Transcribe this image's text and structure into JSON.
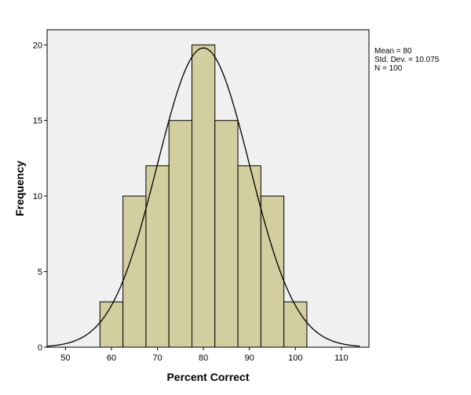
{
  "chart_data": {
    "type": "bar",
    "subtype": "histogram",
    "bins": [
      {
        "x0": 57.5,
        "x1": 62.5,
        "count": 3
      },
      {
        "x0": 62.5,
        "x1": 67.5,
        "count": 10
      },
      {
        "x0": 67.5,
        "x1": 72.5,
        "count": 12
      },
      {
        "x0": 72.5,
        "x1": 77.5,
        "count": 15
      },
      {
        "x0": 77.5,
        "x1": 82.5,
        "count": 20
      },
      {
        "x0": 82.5,
        "x1": 87.5,
        "count": 15
      },
      {
        "x0": 87.5,
        "x1": 92.5,
        "count": 12
      },
      {
        "x0": 92.5,
        "x1": 97.5,
        "count": 10
      },
      {
        "x0": 97.5,
        "x1": 102.5,
        "count": 3
      }
    ],
    "xlabel": "Percent Correct",
    "ylabel": "Frequency",
    "xlim": [
      46,
      116
    ],
    "ylim": [
      0,
      21
    ],
    "xticks": [
      "50",
      "60",
      "70",
      "80",
      "90",
      "100",
      "110"
    ],
    "yticks": [
      "0",
      "5",
      "10",
      "15",
      "20"
    ],
    "normal_curve": {
      "mean": 80,
      "sd": 10.075,
      "n": 100,
      "bin_width": 5
    },
    "stats": [
      "Mean = 80",
      "Std. Dev. = 10.075",
      "N = 100"
    ],
    "colors": {
      "bar_fill": "#d3cea0",
      "bar_stroke": "#000000",
      "plot_bg": "#f0f0f0",
      "curve": "#000000"
    },
    "grid": false
  }
}
